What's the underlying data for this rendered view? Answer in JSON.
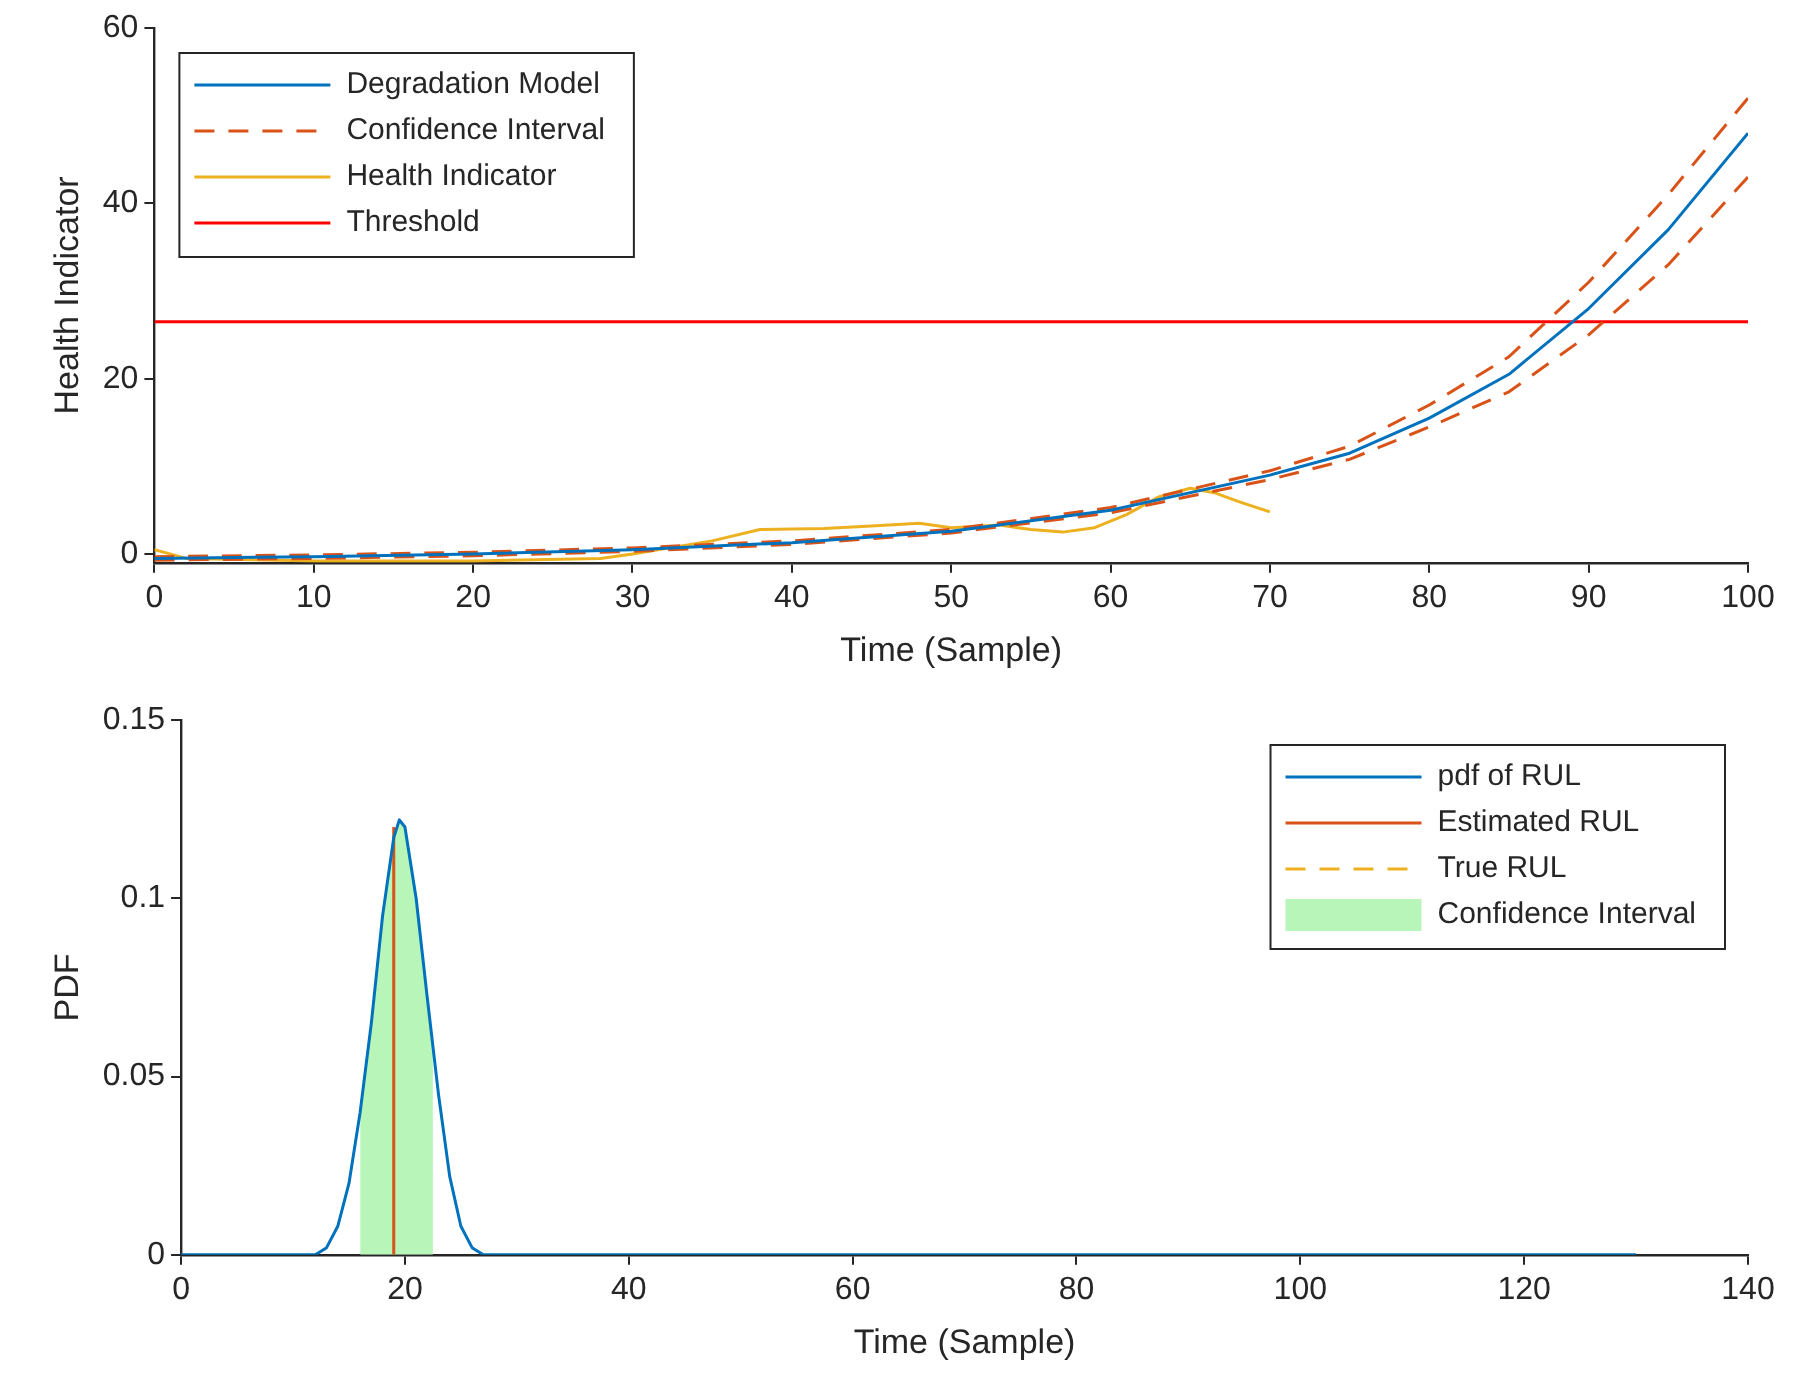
{
  "chart_data": [
    {
      "type": "line",
      "xlabel": "Time (Sample)",
      "ylabel": "Health Indicator",
      "xlim": [
        0,
        100
      ],
      "ylim": [
        -1,
        60
      ],
      "xticks": [
        0,
        10,
        20,
        30,
        40,
        50,
        60,
        70,
        80,
        90,
        100
      ],
      "yticks": [
        0,
        20,
        40,
        60
      ],
      "grid": false,
      "legend": "top left",
      "marker": "none",
      "series": [
        {
          "name": "Degradation Model",
          "color": "#0072bd",
          "x": [
            0,
            10,
            20,
            30,
            40,
            50,
            60,
            70,
            75,
            80,
            85,
            90,
            95,
            100
          ],
          "values": [
            -0.5,
            -0.3,
            0,
            0.5,
            1.3,
            2.6,
            5,
            9,
            11.5,
            15.5,
            20.5,
            28,
            37,
            48
          ]
        },
        {
          "name": "Confidence Interval",
          "color": "#d95319",
          "line_style": "dashed",
          "x": [
            0,
            10,
            20,
            30,
            40,
            50,
            60,
            70,
            75,
            80,
            85,
            90,
            95,
            100
          ],
          "values": [
            -0.3,
            -0.1,
            0.2,
            0.7,
            1.5,
            2.8,
            5.3,
            9.5,
            12.3,
            17,
            22.5,
            31,
            41,
            52
          ]
        },
        {
          "color": "#d95319",
          "line_style": "dashed",
          "x": [
            0,
            10,
            20,
            30,
            40,
            50,
            60,
            70,
            75,
            80,
            85,
            90,
            95,
            100
          ],
          "values": [
            -0.7,
            -0.5,
            -0.2,
            0.3,
            1.1,
            2.4,
            4.7,
            8.5,
            10.8,
            14.5,
            18.5,
            25,
            33,
            43
          ]
        },
        {
          "name": "Health Indicator",
          "color": "#edb120",
          "x": [
            0,
            2,
            10,
            20,
            28,
            30,
            35,
            38,
            42,
            45,
            48,
            50,
            53,
            55,
            57,
            59,
            61,
            63,
            65,
            66.5,
            68,
            70
          ],
          "values": [
            0.5,
            -0.5,
            -0.8,
            -0.8,
            -0.5,
            0,
            1.5,
            2.8,
            2.9,
            3.2,
            3.5,
            3,
            3.3,
            2.8,
            2.5,
            3,
            4.5,
            6.5,
            7.5,
            7,
            6,
            4.8
          ]
        }
      ],
      "ref_lines": [
        {
          "axis": "y",
          "value": 26.5,
          "label": "Threshold",
          "color": "#ff0000"
        }
      ]
    },
    {
      "type": "line",
      "xlabel": "Time (Sample)",
      "ylabel": "PDF",
      "xlim": [
        0,
        140
      ],
      "ylim": [
        0,
        0.15
      ],
      "xticks": [
        0,
        20,
        40,
        60,
        80,
        100,
        120,
        140
      ],
      "yticks": [
        0,
        0.05,
        0.1,
        0.15
      ],
      "grid": false,
      "legend": "top right",
      "marker": "none",
      "series": [
        {
          "name": "pdf of RUL",
          "color": "#0072bd",
          "x": [
            0,
            12,
            13,
            14,
            15,
            16,
            17,
            18,
            19,
            19.5,
            20,
            21,
            22,
            23,
            24,
            25,
            26,
            27,
            130
          ],
          "values": [
            0,
            0,
            0.002,
            0.008,
            0.02,
            0.04,
            0.065,
            0.095,
            0.117,
            0.122,
            0.12,
            0.1,
            0.072,
            0.045,
            0.022,
            0.008,
            0.002,
            0,
            0
          ]
        },
        {
          "name": "Estimated RUL",
          "color": "#d95319",
          "x": [
            19,
            19
          ],
          "values": [
            0,
            0.12
          ]
        },
        {
          "name": "True RUL",
          "color": "#edb120",
          "line_style": "dashed"
        },
        {
          "name": "Confidence Interval",
          "type": "area",
          "color": "#b8f5b8",
          "x": [
            16,
            17,
            18,
            19,
            19.5,
            20,
            21,
            22,
            22.5
          ],
          "values": [
            0.04,
            0.065,
            0.095,
            0.117,
            0.122,
            0.12,
            0.1,
            0.072,
            0.058
          ]
        }
      ]
    }
  ]
}
